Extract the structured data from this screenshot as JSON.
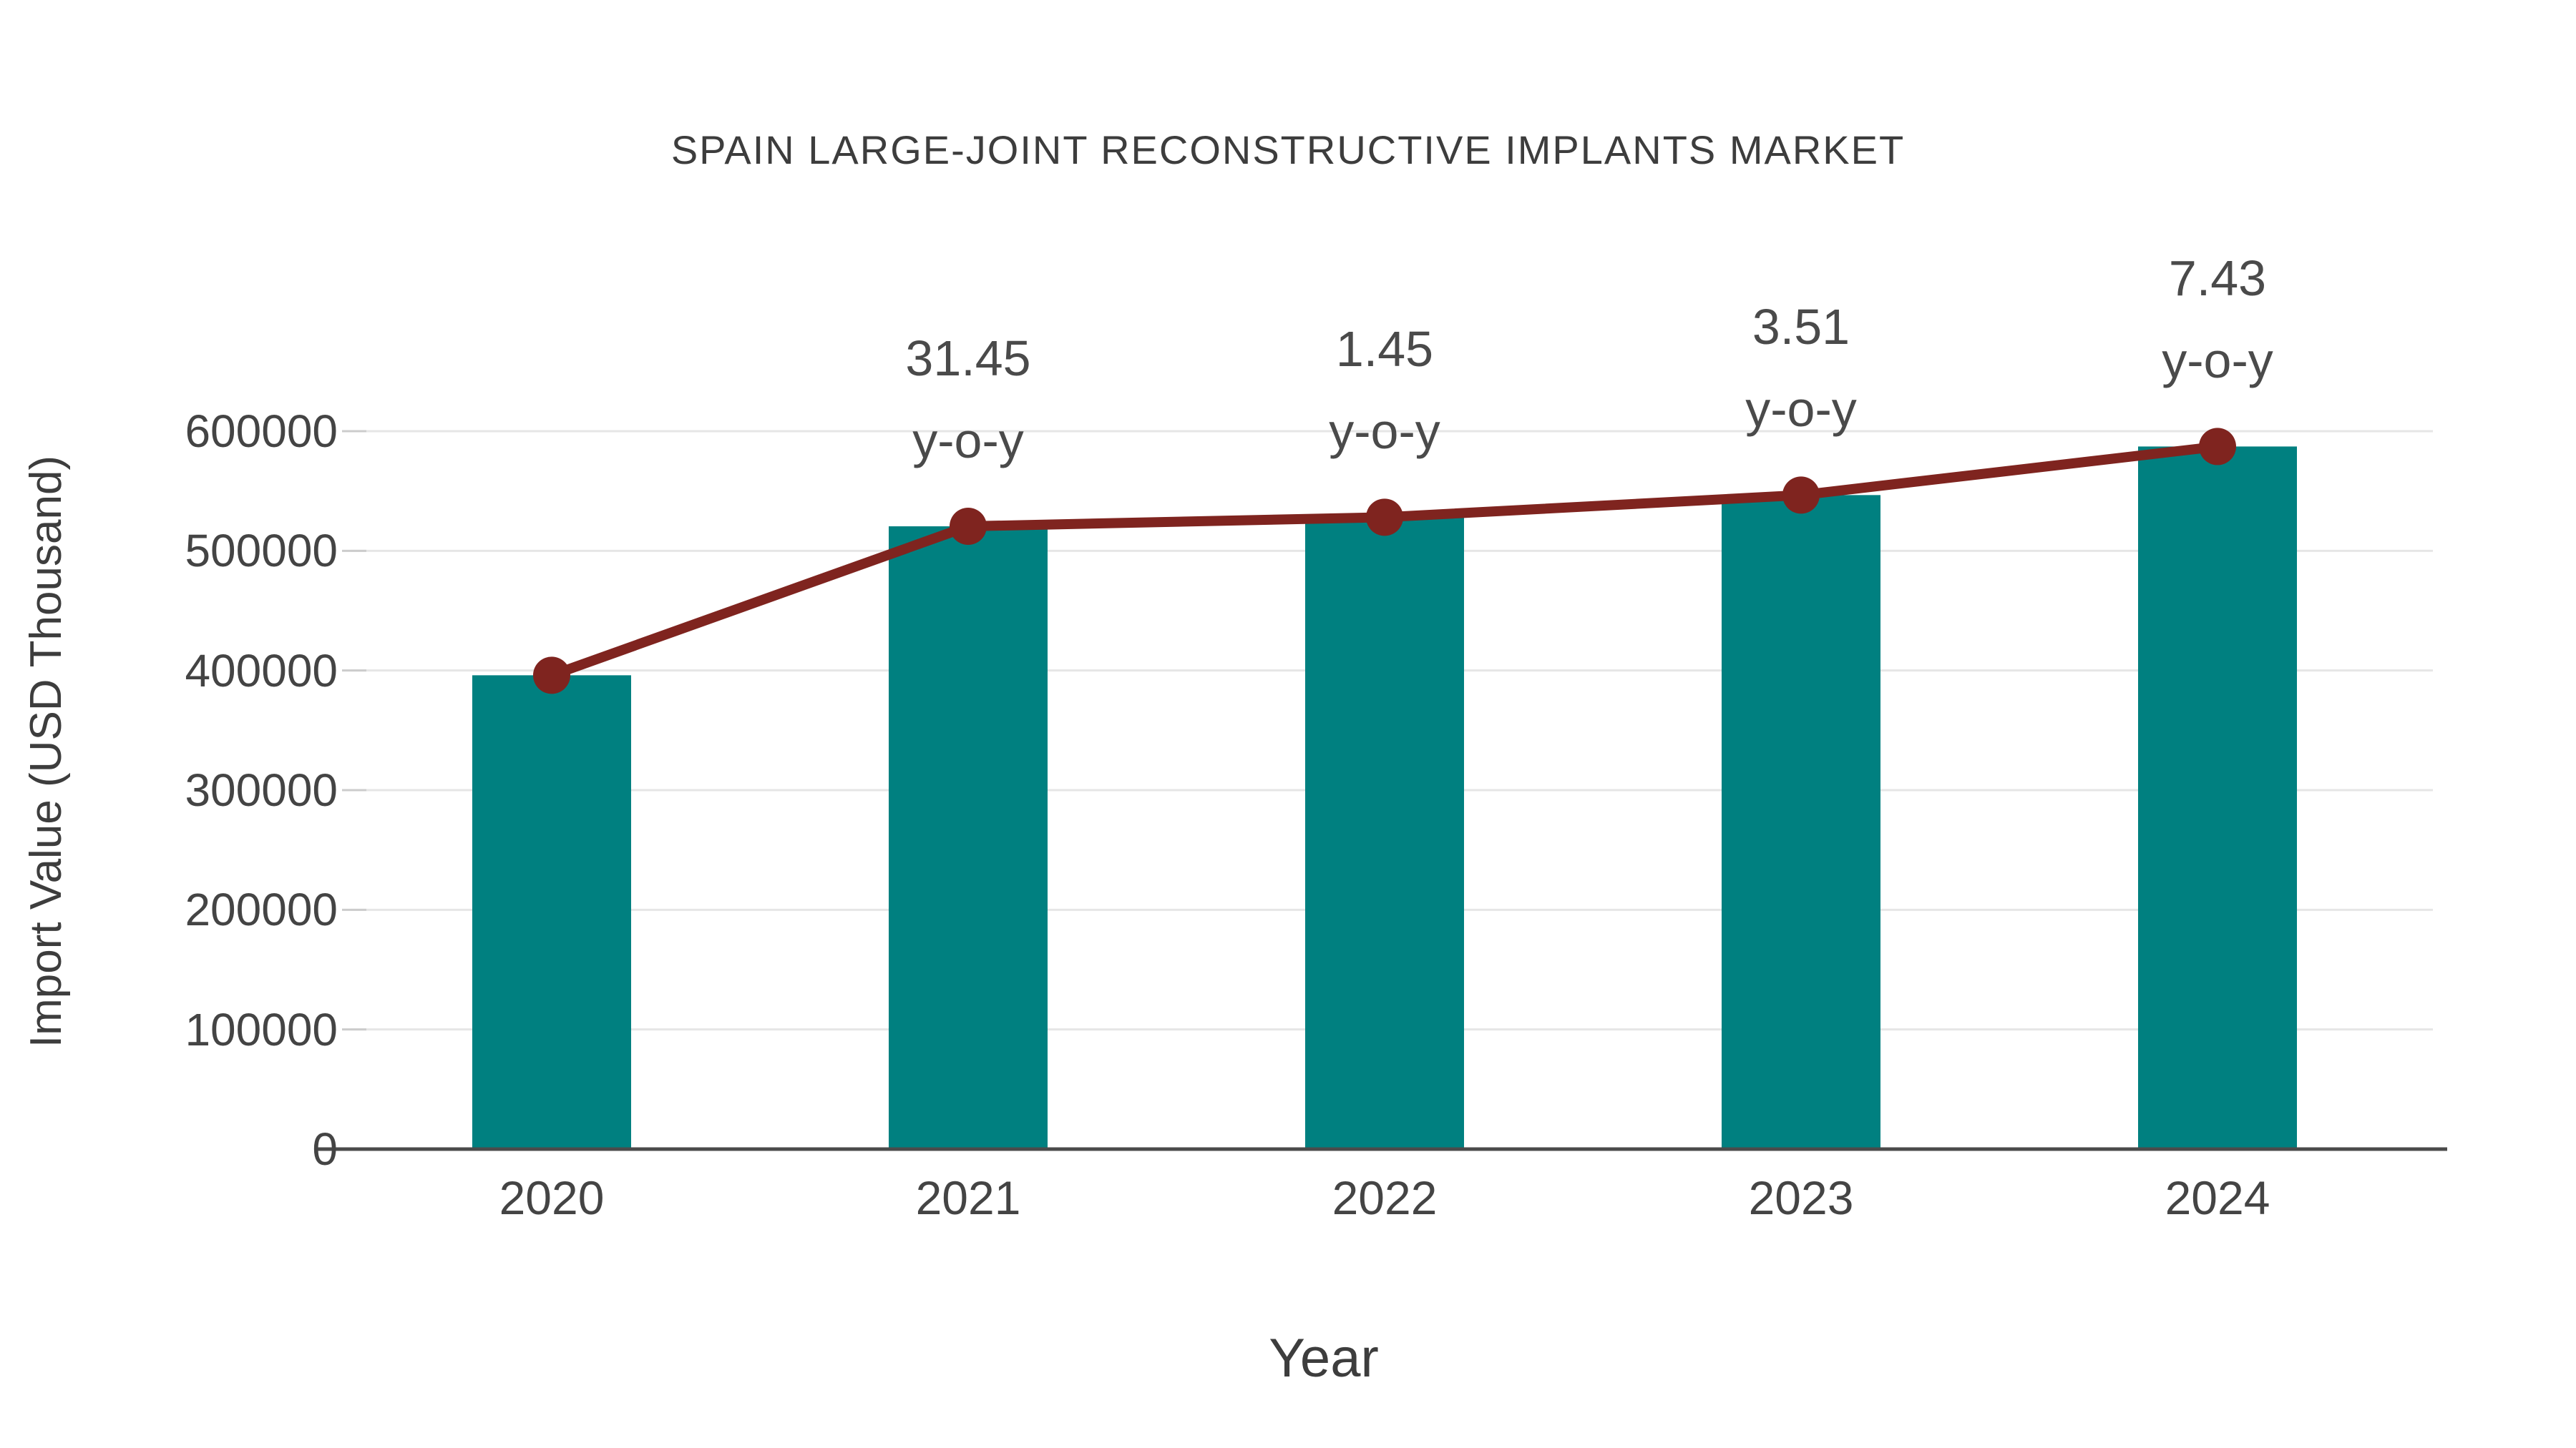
{
  "chart_data": {
    "type": "bar",
    "title": "SPAIN LARGE-JOINT RECONSTRUCTIVE IMPLANTS MARKET",
    "xlabel": "Year",
    "ylabel": "Import Value (USD Thousand)",
    "categories": [
      "2020",
      "2021",
      "2022",
      "2023",
      "2024"
    ],
    "series": [
      {
        "name": "Import Value bars",
        "type": "bar",
        "values": [
          396000,
          520500,
          528100,
          546600,
          587200
        ]
      },
      {
        "name": "Import Value trend line",
        "type": "line",
        "values": [
          396000,
          520500,
          528100,
          546600,
          587200
        ]
      }
    ],
    "annotations": [
      {
        "category": "2021",
        "value_label": "31.45",
        "suffix_label": "y-o-y"
      },
      {
        "category": "2022",
        "value_label": "1.45",
        "suffix_label": "y-o-y"
      },
      {
        "category": "2023",
        "value_label": "3.51",
        "suffix_label": "y-o-y"
      },
      {
        "category": "2024",
        "value_label": "7.43",
        "suffix_label": "y-o-y"
      }
    ],
    "yticks": [
      0,
      100000,
      200000,
      300000,
      400000,
      500000,
      600000
    ],
    "ylim": [
      0,
      650000
    ],
    "grid": true,
    "legend_position": "none",
    "colors": {
      "bar": "#008080",
      "line": "#7f241f",
      "marker": "#7f241f",
      "gridline": "#e6e6e6",
      "axis_line": "#4b4b4b",
      "tick_mark": "#cccccc",
      "text": "#3d3d3d"
    }
  }
}
